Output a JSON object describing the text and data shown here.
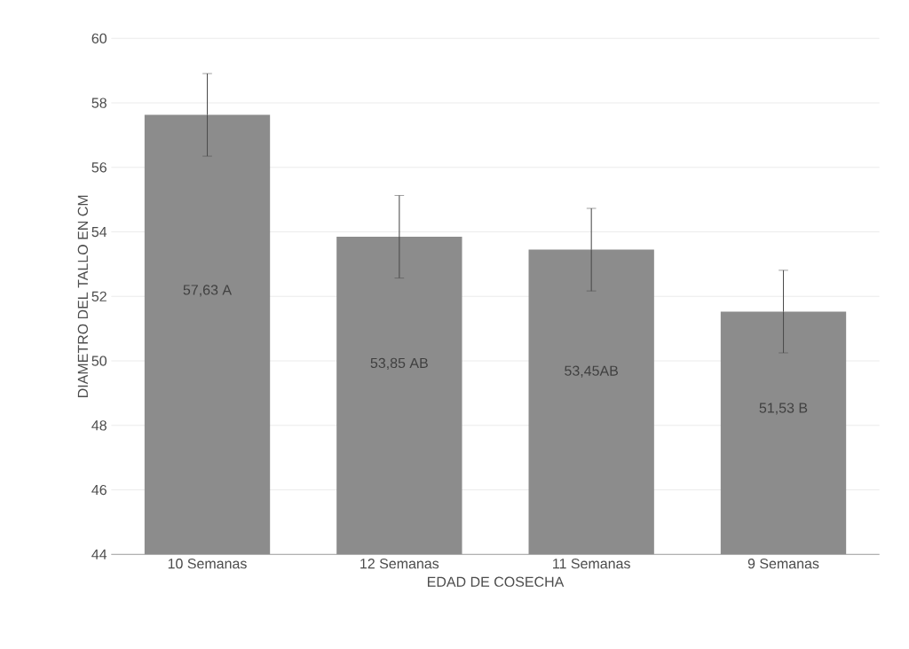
{
  "chart_data": {
    "type": "bar",
    "xlabel": "EDAD DE COSECHA",
    "ylabel": "DIAMETRO DEL TALLO EN CM",
    "categories": [
      "10 Semanas",
      "12 Semanas",
      "11 Semanas",
      "9 Semanas"
    ],
    "values": [
      57.63,
      53.85,
      53.45,
      51.53
    ],
    "errors": [
      1.28,
      1.28,
      1.28,
      1.28
    ],
    "value_labels": [
      "57,63 A",
      "53,85 AB",
      "53,45AB",
      "51,53 B"
    ],
    "color": "#8c8c8c",
    "ylim": [
      44,
      60
    ],
    "yticks": [
      44,
      46,
      48,
      50,
      52,
      54,
      56,
      58,
      60
    ],
    "grid": "y"
  }
}
